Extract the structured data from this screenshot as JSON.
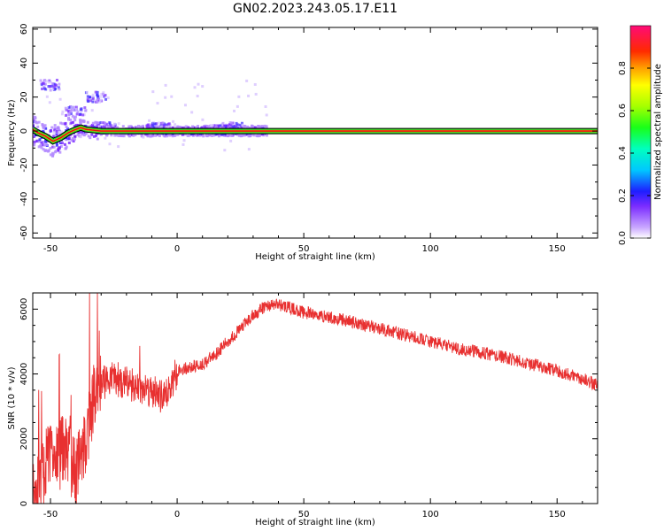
{
  "title": "GN02.2023.243.05.17.E11",
  "colors": {
    "snr_line": "#e83030",
    "axis": "#000000",
    "trace_core": "#e01010",
    "trace_band": "#2ad12a",
    "trace_outline": "#000000"
  },
  "chart_data": [
    {
      "type": "heatmap",
      "title": "GN02.2023.243.05.17.E11",
      "xlabel": "Height of straight line (km)",
      "ylabel": "Frequency (Hz)",
      "xlim": [
        -57,
        166
      ],
      "ylim": [
        -63,
        61
      ],
      "xticks": [
        -50,
        0,
        50,
        100,
        150
      ],
      "yticks": [
        -60,
        -40,
        -20,
        0,
        20,
        40,
        60
      ],
      "dominant_frequency_hz": 0,
      "ridge_x": [
        -57,
        -55,
        -52,
        -49,
        -46,
        -43,
        -40,
        -38,
        -36,
        -33,
        -30,
        -20,
        -10,
        0,
        10,
        20,
        30,
        60,
        100,
        166
      ],
      "ridge_y": [
        1,
        -1,
        -3,
        -6,
        -4,
        -1,
        1,
        2,
        1,
        0.5,
        0,
        0,
        0,
        0,
        0,
        0,
        0,
        0,
        0,
        0
      ],
      "colorbar": {
        "label": "Normalized spectral amplitude",
        "ticks": [
          0.0,
          0.2,
          0.4,
          0.6,
          0.8
        ],
        "range": [
          0,
          1
        ]
      }
    },
    {
      "type": "line",
      "xlabel": "Height of straight line (km)",
      "ylabel": "SNR (10 * v/v)",
      "xlim": [
        -57,
        166
      ],
      "ylim": [
        0,
        6500
      ],
      "xticks": [
        -50,
        0,
        50,
        100,
        150
      ],
      "yticks": [
        0,
        2000,
        4000,
        6000
      ],
      "x": [
        -57,
        -54,
        -50,
        -47,
        -44,
        -40,
        -37,
        -34,
        -32,
        -30,
        -25,
        -20,
        -15,
        -10,
        -5,
        0,
        5,
        10,
        15,
        20,
        25,
        30,
        35,
        40,
        50,
        60,
        70,
        80,
        90,
        100,
        110,
        120,
        130,
        140,
        150,
        160,
        166
      ],
      "y": [
        400,
        700,
        1600,
        1400,
        1800,
        900,
        1700,
        2800,
        3600,
        3700,
        3900,
        3700,
        3600,
        3500,
        3200,
        4100,
        4200,
        4300,
        4600,
        5000,
        5400,
        5800,
        6100,
        6150,
        5900,
        5750,
        5600,
        5400,
        5200,
        5000,
        4800,
        4650,
        4500,
        4300,
        4100,
        3850,
        3650
      ]
    }
  ]
}
